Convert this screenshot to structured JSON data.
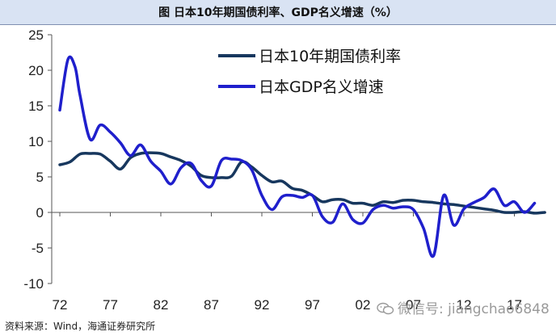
{
  "header": {
    "title": "图 日本10年期国债利率、GDP名义增速（%）"
  },
  "source_note": "资料来源：Wind，海通证券研究所",
  "watermark": "微信号: jiangchao6848",
  "chart_data": {
    "type": "line",
    "title": "图 日本10年期国债利率、GDP名义增速（%）",
    "xlabel": "",
    "ylabel": "",
    "x_tick_labels": [
      "72",
      "77",
      "82",
      "87",
      "92",
      "97",
      "02",
      "07",
      "12",
      "17"
    ],
    "y_ticks": [
      25,
      20,
      15,
      10,
      5,
      0,
      -5,
      -10
    ],
    "xlim": [
      1972,
      2020
    ],
    "ylim": [
      -10,
      25
    ],
    "grid": false,
    "legend_position": "top-right",
    "series": [
      {
        "name": "日本10年期国债利率",
        "color": "#17375e",
        "points": [
          [
            1972,
            6.7
          ],
          [
            1973,
            7.1
          ],
          [
            1974,
            8.2
          ],
          [
            1975,
            8.3
          ],
          [
            1976,
            8.2
          ],
          [
            1977,
            7.2
          ],
          [
            1978,
            6.1
          ],
          [
            1979,
            7.7
          ],
          [
            1980,
            8.3
          ],
          [
            1981,
            8.4
          ],
          [
            1982,
            8.3
          ],
          [
            1983,
            7.8
          ],
          [
            1984,
            7.3
          ],
          [
            1985,
            6.5
          ],
          [
            1986,
            5.2
          ],
          [
            1987,
            4.9
          ],
          [
            1988,
            4.9
          ],
          [
            1989,
            5.1
          ],
          [
            1990,
            7.1
          ],
          [
            1991,
            6.4
          ],
          [
            1992,
            5.2
          ],
          [
            1993,
            4.3
          ],
          [
            1994,
            4.4
          ],
          [
            1995,
            3.4
          ],
          [
            1996,
            3.1
          ],
          [
            1997,
            2.4
          ],
          [
            1998,
            1.5
          ],
          [
            1999,
            1.8
          ],
          [
            2000,
            1.8
          ],
          [
            2001,
            1.3
          ],
          [
            2002,
            1.3
          ],
          [
            2003,
            1.0
          ],
          [
            2004,
            1.5
          ],
          [
            2005,
            1.4
          ],
          [
            2006,
            1.7
          ],
          [
            2007,
            1.7
          ],
          [
            2008,
            1.5
          ],
          [
            2009,
            1.4
          ],
          [
            2010,
            1.2
          ],
          [
            2011,
            1.1
          ],
          [
            2012,
            0.9
          ],
          [
            2013,
            0.7
          ],
          [
            2014,
            0.5
          ],
          [
            2015,
            0.3
          ],
          [
            2016,
            0.0
          ],
          [
            2017,
            0.0
          ],
          [
            2018,
            0.1
          ],
          [
            2019,
            -0.1
          ],
          [
            2020,
            0.0
          ]
        ]
      },
      {
        "name": "日本GDP名义增速",
        "color": "#1f1fcc",
        "points": [
          [
            1972,
            14.4
          ],
          [
            1972.8,
            21.5
          ],
          [
            1973.5,
            20.5
          ],
          [
            1974,
            16.5
          ],
          [
            1975,
            10.3
          ],
          [
            1976,
            12.3
          ],
          [
            1977,
            11.3
          ],
          [
            1978,
            9.8
          ],
          [
            1979,
            8.0
          ],
          [
            1980,
            9.5
          ],
          [
            1981,
            7.2
          ],
          [
            1982,
            5.8
          ],
          [
            1983,
            4.0
          ],
          [
            1984,
            6.3
          ],
          [
            1985,
            6.9
          ],
          [
            1986,
            4.5
          ],
          [
            1987,
            3.7
          ],
          [
            1988,
            7.3
          ],
          [
            1989,
            7.5
          ],
          [
            1990,
            7.3
          ],
          [
            1991,
            6.0
          ],
          [
            1992,
            2.4
          ],
          [
            1993,
            0.4
          ],
          [
            1994,
            2.2
          ],
          [
            1995,
            2.4
          ],
          [
            1996,
            2.1
          ],
          [
            1997,
            2.4
          ],
          [
            1998,
            -0.6
          ],
          [
            1999,
            -1.4
          ],
          [
            2000,
            1.2
          ],
          [
            2001,
            -1.0
          ],
          [
            2002,
            -1.5
          ],
          [
            2003,
            0.4
          ],
          [
            2004,
            1.0
          ],
          [
            2005,
            0.6
          ],
          [
            2006,
            0.8
          ],
          [
            2007,
            0.4
          ],
          [
            2008,
            -2.2
          ],
          [
            2009,
            -6.1
          ],
          [
            2010,
            2.4
          ],
          [
            2011,
            -1.8
          ],
          [
            2012,
            0.5
          ],
          [
            2013,
            1.4
          ],
          [
            2014,
            2.1
          ],
          [
            2015,
            3.3
          ],
          [
            2016,
            1.0
          ],
          [
            2017,
            1.5
          ],
          [
            2018,
            0.0
          ],
          [
            2019,
            1.3
          ]
        ]
      }
    ]
  }
}
